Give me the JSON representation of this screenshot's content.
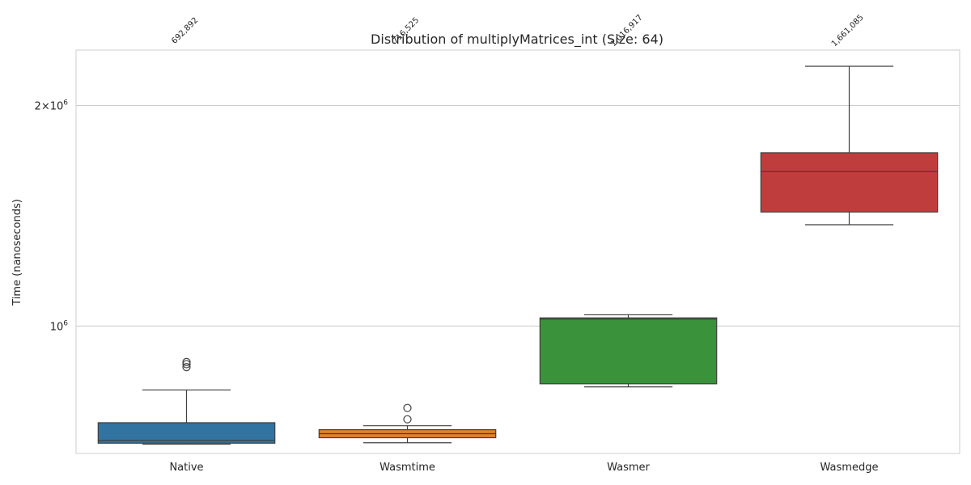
{
  "chart_data": {
    "type": "box",
    "title": "Distribution of multiplyMatrices_int (Size: 64)",
    "xlabel": "",
    "ylabel": "Time (nanoseconds)",
    "yscale": "log",
    "ylim": [
      670000,
      2380000
    ],
    "grid": "y-major",
    "y_ticks": [
      {
        "value": 1000000,
        "base": "10",
        "exp": "6"
      },
      {
        "value": 2000000,
        "base": "2×10",
        "exp": "6"
      }
    ],
    "categories": [
      "Native",
      "Wasmtime",
      "Wasmer",
      "Wasmedge"
    ],
    "colors": [
      "#3274a1",
      "#e1812c",
      "#3a923a",
      "#c03d3e"
    ],
    "series": [
      {
        "category": "Native",
        "whisker_low": 690000,
        "q1": 692000,
        "median": 698000,
        "q3": 738000,
        "whisker_high": 818000,
        "outliers": [
          879000,
          887000,
          893000
        ],
        "mean_label": "692,892"
      },
      {
        "category": "Wasmtime",
        "whisker_low": 693000,
        "q1": 704000,
        "median": 713000,
        "q3": 722000,
        "whisker_high": 731000,
        "outliers": [
          746000,
          773000
        ],
        "mean_label": "716,525"
      },
      {
        "category": "Wasmer",
        "whisker_low": 826000,
        "q1": 834000,
        "median": 1022000,
        "q3": 1026000,
        "whisker_high": 1036000,
        "outliers": [],
        "mean_label": "1,016,917"
      },
      {
        "category": "Wasmedge",
        "whisker_low": 1375000,
        "q1": 1431000,
        "median": 1625000,
        "q3": 1724000,
        "whisker_high": 2262000,
        "outliers": [],
        "mean_label": "1,661,085"
      }
    ]
  }
}
